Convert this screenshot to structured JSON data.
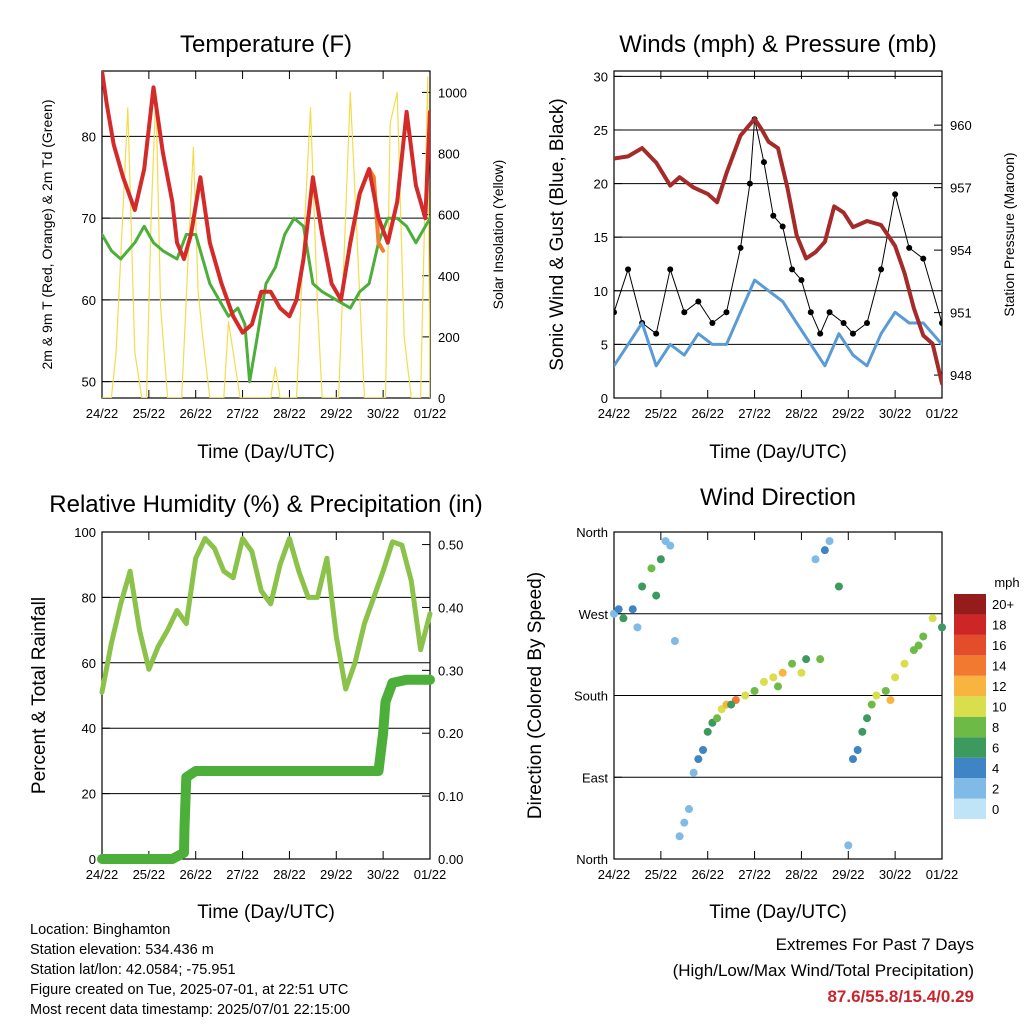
{
  "chart_data": [
    {
      "type": "line",
      "title": "Temperature (F)",
      "xlabel": "Time (Day/UTC)",
      "ylabel": "2m & 9m T (Red, Orange) & 2m Td (Green)",
      "y2label": "Solar Insolation (Yellow)",
      "x_ticks": [
        "24/22",
        "25/22",
        "26/22",
        "27/22",
        "28/22",
        "29/22",
        "30/22",
        "01/22"
      ],
      "ylim": [
        48,
        88
      ],
      "yticks": [
        50,
        60,
        70,
        80
      ],
      "y2lim": [
        0,
        1070
      ],
      "y2ticks": [
        0,
        200,
        400,
        600,
        800,
        1000
      ],
      "grid": true,
      "series": [
        {
          "color": "#d42a2a",
          "x": [
            0,
            0.1,
            0.25,
            0.45,
            0.7,
            0.9,
            1.1,
            1.3,
            1.5,
            1.6,
            1.75,
            1.9,
            2.1,
            2.3,
            2.55,
            2.8,
            3.0,
            3.2,
            3.4,
            3.6,
            3.8,
            4.0,
            4.15,
            4.3,
            4.5,
            4.7,
            4.9,
            5.1,
            5.3,
            5.5,
            5.7,
            5.9,
            6.1,
            6.3,
            6.5,
            6.7,
            6.9,
            7.0
          ],
          "y": [
            88,
            84,
            79,
            75,
            71,
            76,
            86,
            78,
            72,
            67,
            65,
            68,
            75,
            67,
            62,
            58,
            56,
            57,
            61,
            61,
            59,
            58,
            60,
            65,
            75,
            68,
            62,
            60,
            67,
            73,
            76,
            70,
            67,
            72,
            83,
            74,
            70,
            83
          ]
        },
        {
          "color": "#f08030",
          "x": [
            5.3,
            5.5,
            5.7,
            5.8,
            5.9,
            6.0
          ],
          "y": [
            67,
            73,
            76,
            75,
            67,
            66
          ]
        },
        {
          "color": "#4caf3a",
          "x": [
            0,
            0.2,
            0.4,
            0.7,
            0.9,
            1.1,
            1.3,
            1.6,
            1.8,
            2.0,
            2.3,
            2.5,
            2.7,
            2.9,
            3.05,
            3.15,
            3.3,
            3.5,
            3.7,
            3.9,
            4.1,
            4.3,
            4.5,
            4.7,
            5.0,
            5.3,
            5.5,
            5.7,
            5.9,
            6.1,
            6.3,
            6.5,
            6.7,
            7.0
          ],
          "y": [
            68,
            66,
            65,
            67,
            69,
            67,
            66,
            65,
            68,
            68,
            62,
            60,
            58,
            59,
            57,
            50,
            55,
            62,
            64,
            68,
            70,
            69,
            62,
            61,
            60,
            59,
            61,
            62,
            67,
            70,
            70,
            69,
            67,
            70
          ]
        },
        {
          "color": "#f4dc4c",
          "x": [
            0,
            0.1,
            0.2,
            0.3,
            0.35,
            0.55,
            0.7,
            0.85,
            0.95,
            1.05,
            1.15,
            1.25,
            1.4,
            1.55,
            1.7,
            1.85,
            1.95,
            2.05,
            2.15,
            2.3,
            2.45,
            2.6,
            2.7,
            2.85,
            2.95,
            3.05,
            3.15,
            3.3,
            3.45,
            3.6,
            3.7,
            3.8,
            3.95,
            4.05,
            4.15,
            4.3,
            4.45,
            4.6,
            4.7,
            4.8,
            4.95,
            5.05,
            5.15,
            5.3,
            5.45,
            5.6,
            5.7,
            5.8,
            5.95,
            6.05,
            6.15,
            6.3,
            6.45,
            6.6,
            6.7,
            6.8,
            6.95,
            7.0
          ],
          "y": [
            0,
            0,
            0,
            150,
            300,
            950,
            150,
            0,
            0,
            600,
            1000,
            300,
            0,
            0,
            0,
            500,
            820,
            350,
            200,
            0,
            0,
            0,
            250,
            100,
            0,
            0,
            0,
            0,
            0,
            0,
            100,
            0,
            0,
            0,
            0,
            500,
            950,
            300,
            0,
            0,
            0,
            0,
            400,
            1000,
            500,
            0,
            0,
            0,
            0,
            0,
            900,
            1000,
            200,
            0,
            0,
            0,
            1050,
            0
          ]
        }
      ]
    },
    {
      "type": "line",
      "title": "Winds (mph) & Pressure (mb)",
      "xlabel": "Time (Day/UTC)",
      "ylabel": "Sonic Wind & Gust (Blue, Black)",
      "y2label": "Station Pressure (Maroon)",
      "x_ticks": [
        "24/22",
        "25/22",
        "26/22",
        "27/22",
        "28/22",
        "29/22",
        "30/22",
        "01/22"
      ],
      "ylim": [
        0,
        30.5
      ],
      "yticks": [
        0,
        5,
        10,
        15,
        20,
        25,
        30
      ],
      "y2lim": [
        946.9,
        962.6
      ],
      "y2ticks": [
        948,
        951,
        954,
        957,
        960
      ],
      "grid": true,
      "series": [
        {
          "color": "#5b9bd5",
          "x": [
            0,
            0.3,
            0.6,
            0.9,
            1.2,
            1.5,
            1.8,
            2.1,
            2.4,
            2.7,
            3.0,
            3.3,
            3.6,
            3.9,
            4.2,
            4.5,
            4.8,
            5.1,
            5.4,
            5.7,
            6.0,
            6.3,
            6.6,
            7.0
          ],
          "y": [
            3,
            5,
            7,
            3,
            5,
            4,
            6,
            5,
            5,
            8,
            11,
            10,
            9,
            7,
            5,
            3,
            6,
            4,
            3,
            6,
            8,
            7,
            7,
            5
          ]
        },
        {
          "color": "#000000",
          "x": [
            0,
            0.3,
            0.6,
            0.9,
            1.2,
            1.5,
            1.8,
            2.1,
            2.4,
            2.7,
            2.9,
            3.0,
            3.2,
            3.4,
            3.6,
            3.8,
            4.0,
            4.2,
            4.4,
            4.6,
            4.9,
            5.1,
            5.4,
            5.7,
            6.0,
            6.3,
            6.6,
            7.0
          ],
          "y": [
            8,
            12,
            7,
            6,
            12,
            8,
            9,
            7,
            8,
            14,
            20,
            26,
            22,
            17,
            16,
            12,
            11,
            8,
            6,
            8,
            7,
            6,
            7,
            12,
            19,
            14,
            13,
            7
          ]
        },
        {
          "color": "#a52a2a",
          "x": [
            0,
            0.3,
            0.6,
            0.9,
            1.2,
            1.4,
            1.7,
            2.0,
            2.2,
            2.4,
            2.7,
            3.0,
            3.15,
            3.3,
            3.5,
            3.7,
            3.9,
            4.1,
            4.3,
            4.5,
            4.7,
            4.9,
            5.1,
            5.4,
            5.7,
            6.0,
            6.2,
            6.4,
            6.6,
            6.8,
            7.0
          ],
          "y": [
            958.4,
            958.5,
            958.9,
            958.2,
            957.1,
            957.5,
            957.0,
            956.7,
            956.3,
            957.7,
            959.5,
            960.3,
            959.8,
            959.2,
            958.9,
            957.0,
            954.7,
            953.6,
            953.9,
            954.4,
            956.1,
            955.8,
            955.1,
            955.4,
            955.2,
            954.2,
            952.9,
            951.2,
            949.9,
            949.5,
            947.6
          ]
        }
      ]
    },
    {
      "type": "line",
      "title": "Relative Humidity (%) & Precipitation (in)",
      "xlabel": "Time (Day/UTC)",
      "ylabel": "Percent & Total Rainfall",
      "x_ticks": [
        "24/22",
        "25/22",
        "26/22",
        "27/22",
        "28/22",
        "29/22",
        "30/22",
        "01/22"
      ],
      "ylim": [
        0,
        100
      ],
      "yticks": [
        0,
        20,
        40,
        60,
        80,
        100
      ],
      "y2lim": [
        0,
        0.52
      ],
      "y2ticks": [
        "0.00",
        "0.10",
        "0.20",
        "0.30",
        "0.40",
        "0.50"
      ],
      "grid": true,
      "series": [
        {
          "color": "#8bc34a",
          "x": [
            0,
            0.2,
            0.4,
            0.6,
            0.8,
            1.0,
            1.2,
            1.4,
            1.6,
            1.8,
            2.0,
            2.2,
            2.4,
            2.6,
            2.8,
            3.0,
            3.2,
            3.4,
            3.6,
            3.8,
            4.0,
            4.2,
            4.4,
            4.6,
            4.8,
            5.0,
            5.2,
            5.4,
            5.6,
            5.8,
            6.0,
            6.2,
            6.4,
            6.6,
            6.8,
            7.0
          ],
          "y": [
            51,
            66,
            78,
            88,
            70,
            58,
            65,
            70,
            76,
            72,
            92,
            98,
            95,
            88,
            86,
            98,
            94,
            82,
            78,
            90,
            98,
            88,
            80,
            80,
            92,
            68,
            52,
            60,
            72,
            80,
            88,
            97,
            96,
            85,
            64,
            75
          ]
        },
        {
          "color": "#4caf3a",
          "x": [
            0,
            0.5,
            1.0,
            1.5,
            1.75,
            1.76,
            1.8,
            2.0,
            2.5,
            3.0,
            3.5,
            4.0,
            4.5,
            5.0,
            5.5,
            5.9,
            6.0,
            6.05,
            6.2,
            6.5,
            7.0
          ],
          "y": [
            0,
            0,
            0,
            0,
            0.01,
            0.05,
            0.13,
            0.14,
            0.14,
            0.14,
            0.14,
            0.14,
            0.14,
            0.14,
            0.14,
            0.14,
            0.2,
            0.25,
            0.28,
            0.285,
            0.285
          ]
        }
      ]
    },
    {
      "type": "scatter",
      "title": "Wind Direction",
      "xlabel": "Time (Day/UTC)",
      "ylabel": "Direction (Colored By Speed)",
      "x_ticks": [
        "24/22",
        "25/22",
        "26/22",
        "27/22",
        "28/22",
        "29/22",
        "30/22",
        "01/22"
      ],
      "y_categories": [
        "North",
        "East",
        "South",
        "West",
        "North"
      ],
      "ylim": [
        0,
        360
      ],
      "yticks": [
        0,
        90,
        180,
        270,
        360
      ],
      "grid": true,
      "colorbar": {
        "label": "mph",
        "levels": [
          "0",
          "2",
          "4",
          "6",
          "8",
          "10",
          "12",
          "14",
          "16",
          "18",
          "20+"
        ],
        "colors": [
          "#bfe3f7",
          "#7fbbe6",
          "#3f84c4",
          "#3d9a5f",
          "#6dbb46",
          "#d8de4c",
          "#f8b43e",
          "#f27a30",
          "#e34d2c",
          "#cc2626",
          "#961b1b"
        ]
      },
      "x": [
        0.0,
        0.2,
        0.4,
        0.5,
        0.6,
        0.8,
        1.0,
        1.2,
        1.3,
        1.4,
        1.6,
        1.8,
        1.9,
        2.0,
        2.1,
        2.2,
        2.3,
        2.4,
        2.6,
        2.8,
        3.0,
        3.2,
        3.4,
        3.6,
        3.8,
        4.0,
        4.1,
        4.3,
        4.5,
        4.6,
        4.8,
        5.0,
        5.1,
        5.2,
        5.3,
        5.4,
        5.5,
        5.6,
        5.8,
        6.0,
        6.2,
        6.4,
        6.6,
        6.8,
        7.0,
        0.1,
        0.9,
        1.1,
        1.5,
        1.7,
        2.5,
        3.5,
        4.4,
        5.9,
        6.5
      ],
      "y": [
        270,
        265,
        275,
        255,
        300,
        320,
        330,
        345,
        240,
        25,
        55,
        110,
        120,
        140,
        150,
        155,
        165,
        170,
        175,
        180,
        185,
        195,
        200,
        205,
        215,
        205,
        220,
        330,
        340,
        350,
        300,
        15,
        110,
        120,
        140,
        155,
        170,
        180,
        185,
        200,
        215,
        230,
        245,
        265,
        255,
        275,
        290,
        350,
        40,
        95,
        170,
        190,
        220,
        175,
        235
      ],
      "speed": [
        2,
        6,
        4,
        2,
        6,
        8,
        6,
        2,
        2,
        2,
        2,
        4,
        4,
        6,
        6,
        8,
        10,
        12,
        14,
        10,
        8,
        10,
        10,
        12,
        8,
        10,
        6,
        2,
        4,
        2,
        6,
        2,
        4,
        4,
        6,
        6,
        8,
        10,
        8,
        10,
        10,
        8,
        8,
        10,
        6,
        4,
        6,
        2,
        2,
        2,
        6,
        8,
        8,
        12,
        8
      ]
    }
  ],
  "info": {
    "location": "Location: Binghamton",
    "elevation": "Station elevation: 534.436 m",
    "latlon": "Station lat/lon: 42.0584; -75.951",
    "created": "Figure created on Tue, 2025-07-01, at 22:51 UTC",
    "recent": "Most recent data timestamp: 2025/07/01 22:15:00"
  },
  "extremes": {
    "line1": "Extremes For Past 7 Days",
    "line2": "(High/Low/Max Wind/Total Precipitation)",
    "values": "87.6/55.8/15.4/0.29"
  }
}
